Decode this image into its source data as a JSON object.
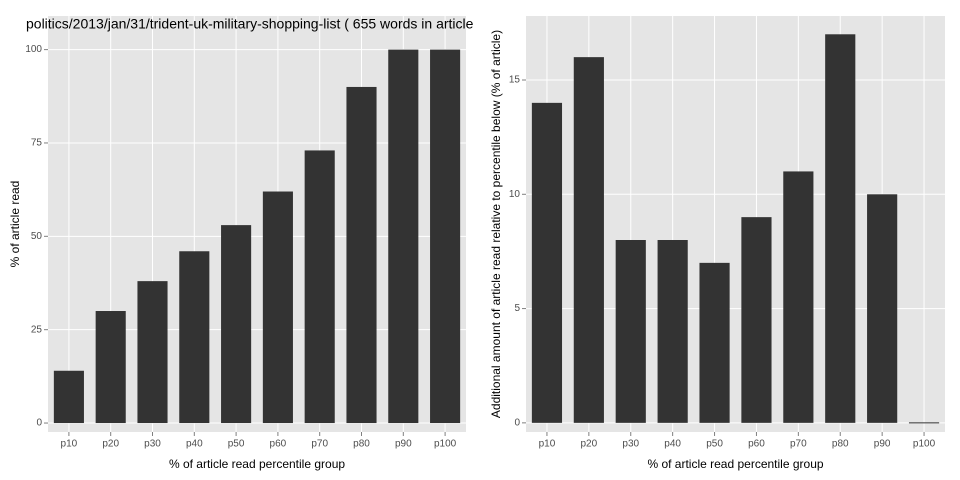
{
  "chart_data": [
    {
      "type": "bar",
      "title": "politics/2013/jan/31/trident-uk-military-shopping-list ( 655 words in article",
      "x_label": "% of article read percentile group",
      "y_label": "% of article read",
      "categories": [
        "p10",
        "p20",
        "p30",
        "p40",
        "p50",
        "p60",
        "p70",
        "p80",
        "p90",
        "p100"
      ],
      "values": [
        14,
        30,
        38,
        46,
        53,
        62,
        73,
        90,
        100,
        100
      ],
      "color": "#333333",
      "ylim": [
        -2.4,
        109
      ],
      "yticks": [
        0,
        25,
        50,
        75,
        100
      ],
      "grid": true
    },
    {
      "type": "bar",
      "x_label": "% of article read percentile group",
      "y_label": "Additional amount of article read relative to percentile below (% of article)",
      "categories": [
        "p10",
        "p20",
        "p30",
        "p40",
        "p50",
        "p60",
        "p70",
        "p80",
        "p90",
        "p100"
      ],
      "values": [
        14,
        16,
        8,
        8,
        7,
        9,
        11,
        17,
        10,
        0
      ],
      "color": "#333333",
      "ylim": [
        -0.4,
        17.8
      ],
      "yticks": [
        0,
        5,
        10,
        15
      ],
      "grid": true
    }
  ]
}
